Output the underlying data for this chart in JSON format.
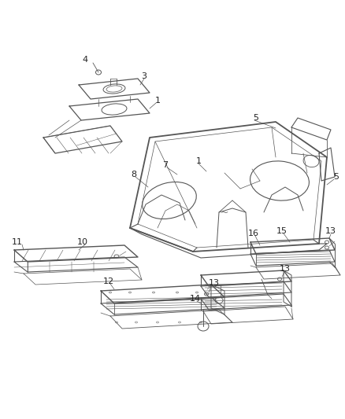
{
  "bg_color": "#ffffff",
  "line_color": "#555555",
  "text_color": "#222222",
  "fig_width": 4.38,
  "fig_height": 5.33,
  "dpi": 100,
  "label_fs": 7.5,
  "lw_main": 1.0,
  "lw_detail": 0.6,
  "lw_thin": 0.4
}
